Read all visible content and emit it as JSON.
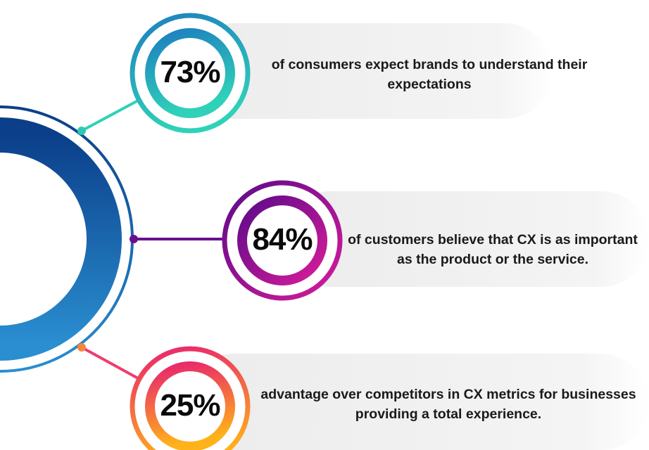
{
  "stats": [
    {
      "value": "73%",
      "line1": "of consumers expect brands to understand their",
      "line2": "expectations",
      "colors": [
        "#1d7fbf",
        "#2fd1b9"
      ]
    },
    {
      "value": "84%",
      "line1": "of customers believe that CX is as important",
      "line2": "as the product or the service.",
      "colors": [
        "#5c0b8a",
        "#d61c9a"
      ]
    },
    {
      "value": "25%",
      "line1": "advantage over competitors in CX metrics for businesses",
      "line2": "providing a total experience.",
      "colors": [
        "#e8236e",
        "#ffb21a"
      ]
    }
  ],
  "hub": {
    "colors": [
      "#0b3f8a",
      "#2a8ed0"
    ]
  }
}
